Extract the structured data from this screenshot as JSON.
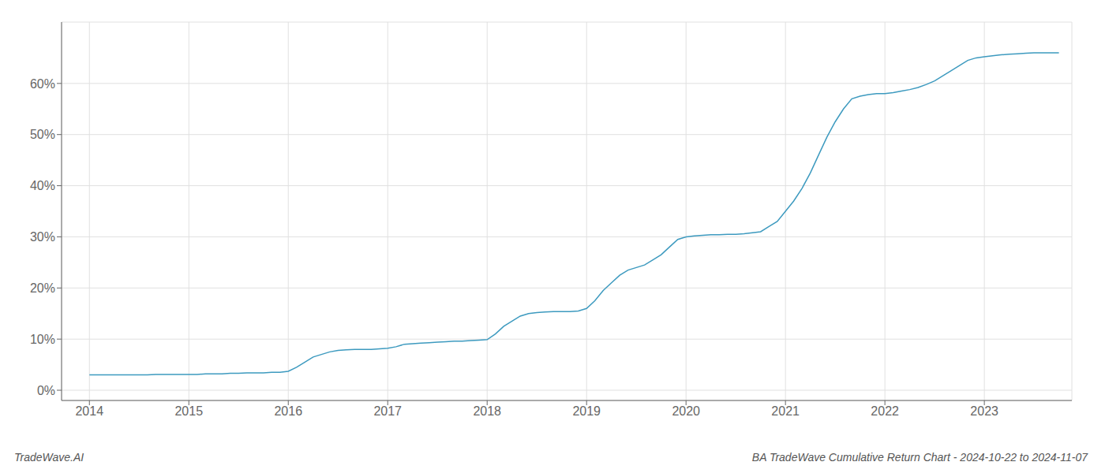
{
  "chart_data": {
    "type": "line",
    "title": "BA TradeWave Cumulative Return Chart - 2024-10-22 to 2024-11-07",
    "annotations": [
      "TradeWave.AI"
    ],
    "color": "#3d9abf",
    "grid": true,
    "x": [
      2014.0,
      2014.083,
      2014.167,
      2014.25,
      2014.333,
      2014.417,
      2014.5,
      2014.583,
      2014.667,
      2014.75,
      2014.833,
      2014.917,
      2015.0,
      2015.083,
      2015.167,
      2015.25,
      2015.333,
      2015.417,
      2015.5,
      2015.583,
      2015.667,
      2015.75,
      2015.833,
      2015.917,
      2016.0,
      2016.083,
      2016.167,
      2016.25,
      2016.333,
      2016.417,
      2016.5,
      2016.583,
      2016.667,
      2016.75,
      2016.833,
      2016.917,
      2017.0,
      2017.083,
      2017.167,
      2017.25,
      2017.333,
      2017.417,
      2017.5,
      2017.583,
      2017.667,
      2017.75,
      2017.833,
      2017.917,
      2018.0,
      2018.083,
      2018.167,
      2018.25,
      2018.333,
      2018.417,
      2018.5,
      2018.583,
      2018.667,
      2018.75,
      2018.833,
      2018.917,
      2019.0,
      2019.083,
      2019.167,
      2019.25,
      2019.333,
      2019.417,
      2019.5,
      2019.583,
      2019.667,
      2019.75,
      2019.833,
      2019.917,
      2020.0,
      2020.083,
      2020.167,
      2020.25,
      2020.333,
      2020.417,
      2020.5,
      2020.583,
      2020.667,
      2020.75,
      2020.833,
      2020.917,
      2021.0,
      2021.083,
      2021.167,
      2021.25,
      2021.333,
      2021.417,
      2021.5,
      2021.583,
      2021.667,
      2021.75,
      2021.833,
      2021.917,
      2022.0,
      2022.083,
      2022.167,
      2022.25,
      2022.333,
      2022.417,
      2022.5,
      2022.583,
      2022.667,
      2022.75,
      2022.833,
      2022.917,
      2023.0,
      2023.083,
      2023.167,
      2023.25,
      2023.333,
      2023.417,
      2023.5,
      2023.583,
      2023.667,
      2023.75
    ],
    "values": [
      3.0,
      3.0,
      3.0,
      3.0,
      3.0,
      3.0,
      3.0,
      3.0,
      3.1,
      3.1,
      3.1,
      3.1,
      3.1,
      3.1,
      3.2,
      3.2,
      3.2,
      3.3,
      3.3,
      3.4,
      3.4,
      3.4,
      3.5,
      3.5,
      3.7,
      4.5,
      5.5,
      6.5,
      7.0,
      7.5,
      7.8,
      7.9,
      8.0,
      8.0,
      8.0,
      8.1,
      8.2,
      8.5,
      9.0,
      9.1,
      9.2,
      9.3,
      9.4,
      9.5,
      9.6,
      9.6,
      9.7,
      9.8,
      9.9,
      11.0,
      12.5,
      13.5,
      14.5,
      15.0,
      15.2,
      15.3,
      15.4,
      15.4,
      15.4,
      15.5,
      16.0,
      17.5,
      19.5,
      21.0,
      22.5,
      23.5,
      24.0,
      24.5,
      25.5,
      26.5,
      28.0,
      29.5,
      30.0,
      30.2,
      30.3,
      30.4,
      30.4,
      30.5,
      30.5,
      30.6,
      30.8,
      31.0,
      32.0,
      33.0,
      35.0,
      37.0,
      39.5,
      42.5,
      46.0,
      49.5,
      52.5,
      55.0,
      57.0,
      57.5,
      57.8,
      58.0,
      58.0,
      58.2,
      58.5,
      58.8,
      59.2,
      59.8,
      60.5,
      61.5,
      62.5,
      63.5,
      64.5,
      65.0,
      65.2,
      65.4,
      65.6,
      65.7,
      65.8,
      65.9,
      66.0,
      66.0,
      66.0,
      66.0
    ],
    "xlim": [
      2013.72,
      2023.88
    ],
    "xticks": [
      2014,
      2015,
      2016,
      2017,
      2018,
      2019,
      2020,
      2021,
      2022,
      2023
    ],
    "ylim": [
      -2,
      72
    ],
    "yticks": [
      {
        "value": 0,
        "label": "0%"
      },
      {
        "value": 10,
        "label": "10%"
      },
      {
        "value": 20,
        "label": "20%"
      },
      {
        "value": 30,
        "label": "30%"
      },
      {
        "value": 40,
        "label": "40%"
      },
      {
        "value": 50,
        "label": "50%"
      },
      {
        "value": 60,
        "label": "60%"
      }
    ]
  }
}
